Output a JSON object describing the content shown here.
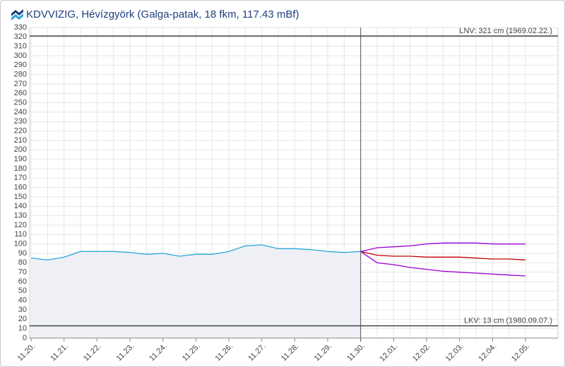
{
  "chart_data": {
    "type": "line",
    "title": "KDVVIZIG, Hévízgyörk (Galga-patak, 18 fkm, 117.43 mBf)",
    "categories": [
      "11.20.",
      null,
      "11.21.",
      null,
      "11.22.",
      null,
      "11.23.",
      null,
      "11.24.",
      null,
      "11.25.",
      null,
      "11.26.",
      null,
      "11.27.",
      null,
      "11.28.",
      null,
      "11.29.",
      null,
      "11.30.",
      null,
      "12.01.",
      null,
      "12.02.",
      null,
      "12.03.",
      null,
      "12.04.",
      null,
      "12.05."
    ],
    "series": [
      {
        "color": "#29a8d8",
        "fill": true,
        "values": [
          85,
          83,
          86,
          92,
          92,
          92,
          91,
          89,
          90,
          87,
          89,
          89,
          92,
          98,
          99,
          95,
          95,
          94,
          92,
          91,
          92,
          null,
          null,
          null,
          null,
          null,
          null,
          null,
          null,
          null,
          null
        ]
      },
      {
        "color": "#c00000",
        "values": [
          null,
          null,
          null,
          null,
          null,
          null,
          null,
          null,
          null,
          null,
          null,
          null,
          null,
          null,
          null,
          null,
          null,
          null,
          null,
          null,
          92,
          88,
          87,
          87,
          86,
          86,
          86,
          85,
          84,
          84,
          83
        ]
      },
      {
        "color": "#9b00d9",
        "values": [
          null,
          null,
          null,
          null,
          null,
          null,
          null,
          null,
          null,
          null,
          null,
          null,
          null,
          null,
          null,
          null,
          null,
          null,
          null,
          null,
          92,
          96,
          97,
          98,
          100,
          101,
          101,
          101,
          100,
          100,
          100
        ]
      },
      {
        "color": "#9b00d9",
        "values": [
          null,
          null,
          null,
          null,
          null,
          null,
          null,
          null,
          null,
          null,
          null,
          null,
          null,
          null,
          null,
          null,
          null,
          null,
          null,
          null,
          92,
          80,
          78,
          75,
          73,
          71,
          70,
          69,
          68,
          67,
          66
        ]
      }
    ],
    "reference_lines": [
      {
        "value": 321,
        "label": "LNV: 321 cm (1969.02.22.)"
      },
      {
        "value": 13,
        "label": "LKV: 13 cm (1980.09.07.)"
      }
    ],
    "ylim": [
      0,
      330
    ],
    "yticks": [
      0,
      10,
      20,
      30,
      40,
      50,
      60,
      70,
      80,
      90,
      100,
      110,
      120,
      130,
      140,
      150,
      160,
      170,
      180,
      190,
      200,
      210,
      220,
      230,
      240,
      250,
      260,
      270,
      280,
      290,
      300,
      310,
      320,
      330
    ],
    "grid": true
  }
}
